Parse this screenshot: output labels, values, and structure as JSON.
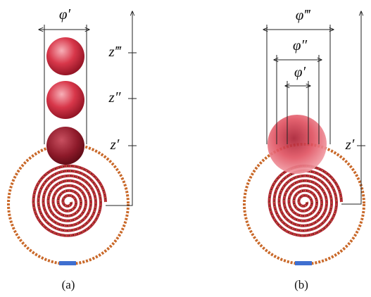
{
  "panel_a": {
    "diameter_label": "φ′",
    "height_labels": [
      "z‴",
      "z″",
      "z′"
    ],
    "caption": "(a)"
  },
  "panel_b": {
    "diameter_labels": [
      "φ‴",
      "φ″",
      "φ′"
    ],
    "height_label": "z′",
    "caption": "(b)"
  }
}
